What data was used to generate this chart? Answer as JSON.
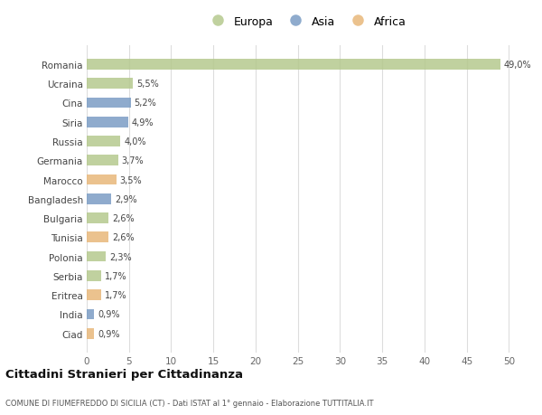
{
  "categories": [
    "Romania",
    "Ucraina",
    "Cina",
    "Siria",
    "Russia",
    "Germania",
    "Marocco",
    "Bangladesh",
    "Bulgaria",
    "Tunisia",
    "Polonia",
    "Serbia",
    "Eritrea",
    "India",
    "Ciad"
  ],
  "values": [
    49.0,
    5.5,
    5.2,
    4.9,
    4.0,
    3.7,
    3.5,
    2.9,
    2.6,
    2.6,
    2.3,
    1.7,
    1.7,
    0.9,
    0.9
  ],
  "labels": [
    "49,0%",
    "5,5%",
    "5,2%",
    "4,9%",
    "4,0%",
    "3,7%",
    "3,5%",
    "2,9%",
    "2,6%",
    "2,6%",
    "2,3%",
    "1,7%",
    "1,7%",
    "0,9%",
    "0,9%"
  ],
  "continents": [
    "Europa",
    "Europa",
    "Asia",
    "Asia",
    "Europa",
    "Europa",
    "Africa",
    "Asia",
    "Europa",
    "Africa",
    "Europa",
    "Europa",
    "Africa",
    "Asia",
    "Africa"
  ],
  "colors": {
    "Europa": "#b5c98e",
    "Asia": "#7b9dc5",
    "Africa": "#e8b87a"
  },
  "title": "Cittadini Stranieri per Cittadinanza",
  "subtitle": "COMUNE DI FIUMEFREDDO DI SICILIA (CT) - Dati ISTAT al 1° gennaio - Elaborazione TUTTITALIA.IT",
  "xlim": [
    0,
    52
  ],
  "xticks": [
    0,
    5,
    10,
    15,
    20,
    25,
    30,
    35,
    40,
    45,
    50
  ],
  "background_color": "#ffffff",
  "grid_color": "#dddddd",
  "bar_height": 0.55
}
